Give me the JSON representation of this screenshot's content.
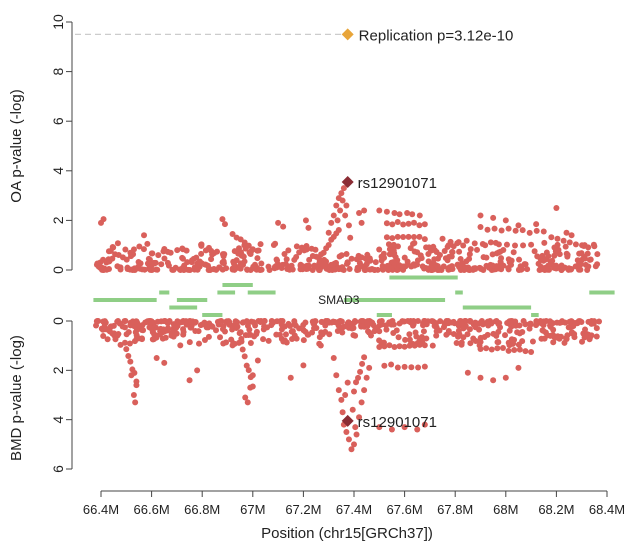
{
  "chart_data": {
    "type": "scatter",
    "xlabel": "Position (chr15[GRCh37])",
    "x_ticks": [
      {
        "value": 66.4,
        "label": "66.4M"
      },
      {
        "value": 66.6,
        "label": "66.6M"
      },
      {
        "value": 66.8,
        "label": "66.8M"
      },
      {
        "value": 67.0,
        "label": "67M"
      },
      {
        "value": 67.2,
        "label": "67.2M"
      },
      {
        "value": 67.4,
        "label": "67.4M"
      },
      {
        "value": 67.6,
        "label": "67.6M"
      },
      {
        "value": 67.8,
        "label": "67.8M"
      },
      {
        "value": 68.0,
        "label": "68M"
      },
      {
        "value": 68.2,
        "label": "68.2M"
      },
      {
        "value": 68.4,
        "label": "68.4M"
      }
    ],
    "xlim": [
      66.35,
      68.43
    ],
    "colors": {
      "points": "#d9605b",
      "lead": "#8b2c34",
      "replication": "#e8a53a",
      "genes": "#8fce86",
      "dashed": "#cccccc",
      "axis": "#444444"
    },
    "top_panel": {
      "ylabel": "OA p-value (-log)",
      "yticks": [
        0,
        2,
        4,
        6,
        8,
        10
      ],
      "ylim": [
        0,
        10
      ],
      "lead_snp": {
        "label": "rs12901071",
        "x": 67.375,
        "y": 3.55
      },
      "replication": {
        "label": "Replication p=3.12e-10",
        "x": 67.375,
        "y": 9.5,
        "line_y": 9.5
      },
      "peak_points": [
        [
          67.3,
          1.5
        ],
        [
          67.31,
          1.9
        ],
        [
          67.32,
          2.2
        ],
        [
          67.33,
          2.6
        ],
        [
          67.34,
          2.9
        ],
        [
          67.35,
          3.1
        ],
        [
          67.36,
          3.3
        ],
        [
          67.355,
          2.8
        ],
        [
          67.345,
          2.4
        ],
        [
          67.335,
          2.0
        ],
        [
          67.37,
          2.6
        ],
        [
          67.365,
          2.2
        ],
        [
          67.38,
          1.8
        ],
        [
          67.385,
          1.3
        ],
        [
          67.5,
          2.4
        ],
        [
          67.53,
          2.35
        ],
        [
          67.56,
          2.3
        ],
        [
          67.58,
          2.25
        ],
        [
          67.61,
          2.3
        ],
        [
          67.63,
          2.25
        ],
        [
          67.66,
          2.2
        ],
        [
          67.42,
          2.3
        ],
        [
          67.44,
          2.4
        ],
        [
          67.43,
          1.9
        ],
        [
          66.4,
          1.9
        ],
        [
          66.41,
          2.05
        ],
        [
          66.57,
          1.4
        ],
        [
          66.88,
          2.05
        ],
        [
          66.89,
          1.85
        ],
        [
          67.1,
          1.9
        ],
        [
          67.12,
          1.75
        ],
        [
          67.21,
          2.0
        ],
        [
          67.22,
          1.7
        ],
        [
          67.9,
          2.2
        ],
        [
          67.95,
          2.1
        ],
        [
          68.0,
          2.0
        ],
        [
          68.05,
          1.8
        ],
        [
          68.12,
          1.85
        ],
        [
          68.2,
          2.5
        ],
        [
          68.24,
          1.5
        ],
        [
          68.26,
          1.4
        ]
      ]
    },
    "bottom_panel": {
      "ylabel": "BMD p-value (-log)",
      "yticks": [
        0,
        2,
        4,
        6
      ],
      "ylim": [
        0,
        6
      ],
      "lead_snp": {
        "label": "rs12901071",
        "x": 67.375,
        "y": 4.05
      },
      "peak_points": [
        [
          67.32,
          1.5
        ],
        [
          67.33,
          2.2
        ],
        [
          67.34,
          2.8
        ],
        [
          67.35,
          3.2
        ],
        [
          67.355,
          3.7
        ],
        [
          67.36,
          4.2
        ],
        [
          67.37,
          4.5
        ],
        [
          67.38,
          4.8
        ],
        [
          67.39,
          5.2
        ],
        [
          67.4,
          5.0
        ],
        [
          67.41,
          4.6
        ],
        [
          67.42,
          3.9
        ],
        [
          67.43,
          3.3
        ],
        [
          67.44,
          2.8
        ],
        [
          67.45,
          2.3
        ],
        [
          67.46,
          1.9
        ],
        [
          67.365,
          3.0
        ],
        [
          67.375,
          2.5
        ],
        [
          67.395,
          3.6
        ],
        [
          67.405,
          4.3
        ],
        [
          67.5,
          4.3
        ],
        [
          67.55,
          4.4
        ],
        [
          67.6,
          4.3
        ],
        [
          67.65,
          4.4
        ],
        [
          67.68,
          4.2
        ],
        [
          66.53,
          3.0
        ],
        [
          66.535,
          3.3
        ],
        [
          66.54,
          2.6
        ],
        [
          66.52,
          2.2
        ],
        [
          66.97,
          3.1
        ],
        [
          66.98,
          3.3
        ],
        [
          66.99,
          2.7
        ],
        [
          67.0,
          2.2
        ],
        [
          67.02,
          1.6
        ],
        [
          67.85,
          2.1
        ],
        [
          67.9,
          2.3
        ],
        [
          67.95,
          2.4
        ],
        [
          68.0,
          2.3
        ],
        [
          68.05,
          1.9
        ],
        [
          67.15,
          2.3
        ],
        [
          67.2,
          1.8
        ],
        [
          66.75,
          2.4
        ],
        [
          66.78,
          2.0
        ],
        [
          66.62,
          1.5
        ],
        [
          66.65,
          1.7
        ]
      ]
    },
    "genes": {
      "label": "SMAD3",
      "segments": [
        [
          66.37,
          66.62,
          0
        ],
        [
          66.63,
          66.67,
          1
        ],
        [
          66.67,
          66.78,
          -1
        ],
        [
          66.7,
          66.82,
          0
        ],
        [
          66.8,
          66.88,
          -2
        ],
        [
          66.86,
          66.93,
          1
        ],
        [
          66.88,
          67.0,
          2
        ],
        [
          66.98,
          67.09,
          1
        ],
        [
          67.36,
          67.76,
          0
        ],
        [
          67.49,
          67.55,
          -2
        ],
        [
          67.54,
          67.81,
          3
        ],
        [
          67.8,
          67.83,
          1
        ],
        [
          67.83,
          68.1,
          -1
        ],
        [
          68.1,
          68.13,
          -2
        ],
        [
          68.33,
          68.43,
          1
        ]
      ]
    }
  }
}
